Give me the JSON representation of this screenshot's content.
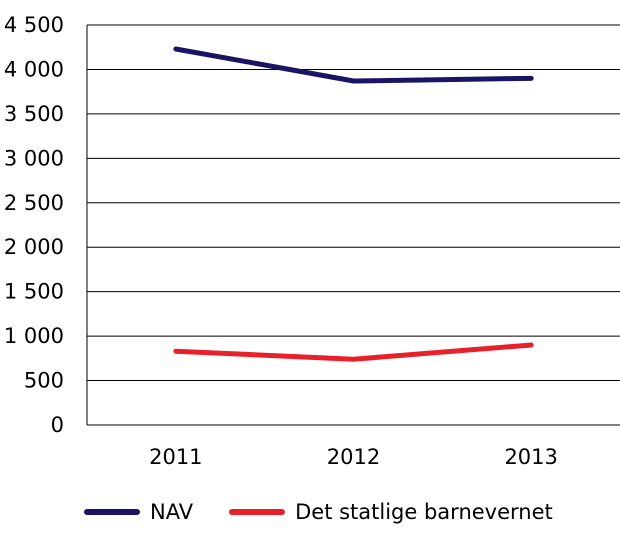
{
  "chart_data": {
    "type": "line",
    "categories": [
      "2011",
      "2012",
      "2013"
    ],
    "ylim": [
      0,
      4500
    ],
    "yticks": [
      0,
      500,
      1000,
      1500,
      2000,
      2500,
      3000,
      3500,
      4000,
      4500
    ],
    "ytick_labels": [
      "0",
      "500",
      "1 000",
      "1 500",
      "2 000",
      "2 500",
      "3 000",
      "3 500",
      "4 000",
      "4 500"
    ],
    "grid": true,
    "legend_position": "bottom",
    "series": [
      {
        "name": "NAV",
        "color": "#1b1464",
        "values": [
          4230,
          3870,
          3900
        ]
      },
      {
        "name": "Det statlige barnevernet",
        "color": "#e8202a",
        "values": [
          830,
          740,
          900
        ]
      }
    ]
  }
}
